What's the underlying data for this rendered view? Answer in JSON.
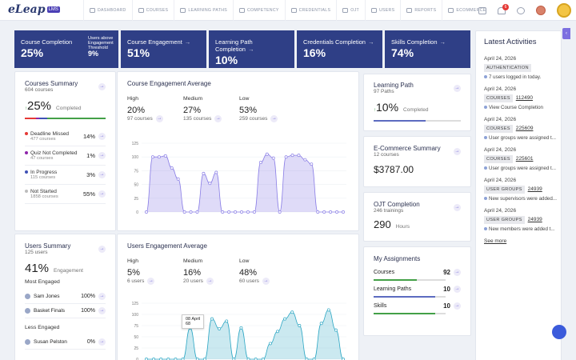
{
  "brand": {
    "logo": "eLeap",
    "badge": "LMS"
  },
  "nav": [
    {
      "label": "DASHBOARD",
      "icon": "dashboard-icon"
    },
    {
      "label": "COURSES",
      "icon": "courses-icon"
    },
    {
      "label": "LEARNING PATHS",
      "icon": "learning-paths-icon"
    },
    {
      "label": "COMPETENCY",
      "icon": "competency-icon"
    },
    {
      "label": "CREDENTIALS",
      "icon": "credentials-icon"
    },
    {
      "label": "OJT",
      "icon": "ojt-icon"
    },
    {
      "label": "USERS",
      "icon": "users-icon"
    },
    {
      "label": "REPORTS",
      "icon": "reports-icon"
    },
    {
      "label": "ECOMMERCE",
      "icon": "ecommerce-icon"
    }
  ],
  "topbar": {
    "notification_count": "6"
  },
  "kpis": [
    {
      "title": "Course Completion",
      "value": "25%",
      "sub": "Users above Engagement Threshold",
      "subval": "9%"
    },
    {
      "title": "Course Engagement",
      "value": "51%"
    },
    {
      "title": "Learning Path Completion",
      "value": "10%"
    },
    {
      "title": "Credentials Completion",
      "value": "16%"
    },
    {
      "title": "Skills Completion",
      "value": "74%"
    }
  ],
  "courses_summary": {
    "title": "Courses Summary",
    "sub": "604 courses",
    "value": "25%",
    "value_label": "Completed",
    "arrow": "↑",
    "items": [
      {
        "label": "Deadline Missed",
        "sub": "477 courses",
        "pct": "14%",
        "color": "#e53935"
      },
      {
        "label": "Quiz Not Completed",
        "sub": "47 courses",
        "pct": "1%",
        "color": "#8e24aa"
      },
      {
        "label": "In Progress",
        "sub": "115 courses",
        "pct": "3%",
        "color": "#3f51b5"
      },
      {
        "label": "Not Started",
        "sub": "1858 courses",
        "pct": "55%",
        "color": "#bdbdbd"
      }
    ]
  },
  "course_engagement": {
    "title": "Course Engagement Average",
    "stats": [
      {
        "label": "High",
        "value": "20%",
        "sub": "97 courses"
      },
      {
        "label": "Medium",
        "value": "27%",
        "sub": "135 courses"
      },
      {
        "label": "Low",
        "value": "53%",
        "sub": "259 courses"
      }
    ]
  },
  "users_summary": {
    "title": "Users Summary",
    "sub": "125 users",
    "value": "41%",
    "value_label": "Engagement",
    "most_label": "Most Engaged",
    "most": [
      {
        "name": "Sam Jones",
        "pct": "100%"
      },
      {
        "name": "Basket Finals",
        "pct": "100%"
      }
    ],
    "less_label": "Less Engaged",
    "less": [
      {
        "name": "Susan Pelston",
        "pct": "0%"
      }
    ]
  },
  "users_engagement": {
    "title": "Users Engagement Average",
    "stats": [
      {
        "label": "High",
        "value": "5%",
        "sub": "6 users"
      },
      {
        "label": "Medium",
        "value": "16%",
        "sub": "20 users"
      },
      {
        "label": "Low",
        "value": "48%",
        "sub": "60 users"
      }
    ],
    "tooltip": {
      "date": "08 April",
      "value": "68"
    }
  },
  "learning_path": {
    "title": "Learning Path",
    "sub": "97 Paths",
    "value": "10%",
    "value_label": "Completed",
    "arrow": "↑"
  },
  "ecommerce": {
    "title": "E-Commerce Summary",
    "sub": "12 courses",
    "value": "$3787.00"
  },
  "ojt": {
    "title": "OJT Completion",
    "sub": "246 trainings",
    "value": "290",
    "unit": "Hours"
  },
  "assignments": {
    "title": "My Assignments",
    "items": [
      {
        "label": "Courses",
        "count": "92",
        "fill": 0.6,
        "color": "#43a047"
      },
      {
        "label": "Learning Paths",
        "count": "10",
        "fill": 0.85,
        "color": "#5c6bc0"
      },
      {
        "label": "Skills",
        "count": "10",
        "fill": 0.85,
        "color": "#43a047"
      }
    ]
  },
  "activities": {
    "title": "Latest Activities",
    "items": [
      {
        "date": "April 24, 2026",
        "tag": "AUTHENTICATION",
        "link": "",
        "desc": "7 users logged in today."
      },
      {
        "date": "April 24, 2026",
        "tag": "COURSES",
        "link": "112490",
        "desc": "View Course Completion"
      },
      {
        "date": "April 24, 2026",
        "tag": "COURSES",
        "link": "225609",
        "desc": "User groups were assigned t..."
      },
      {
        "date": "April 24, 2026",
        "tag": "COURSES",
        "link": "225601",
        "desc": "User groups were assigned t..."
      },
      {
        "date": "April 24, 2026",
        "tag": "USER GROUPS",
        "link": "24939",
        "desc": "New supervisors were added..."
      },
      {
        "date": "April 24, 2026",
        "tag": "USER GROUPS",
        "link": "24939",
        "desc": "New members were added t..."
      }
    ],
    "see_more": "See more"
  },
  "chart_data": [
    {
      "type": "area",
      "title": "Course Engagement Average",
      "ylim": [
        0,
        125
      ],
      "yticks": [
        0,
        25,
        50,
        75,
        100,
        125
      ],
      "values": [
        0,
        100,
        100,
        102,
        80,
        60,
        0,
        0,
        0,
        70,
        52,
        72,
        0,
        0,
        0,
        0,
        0,
        0,
        90,
        105,
        98,
        0,
        100,
        103,
        103,
        95,
        87,
        0,
        0,
        0,
        0,
        0
      ]
    },
    {
      "type": "area",
      "title": "Users Engagement Average",
      "ylim": [
        0,
        125
      ],
      "yticks": [
        0,
        25,
        50,
        75,
        100,
        125
      ],
      "values": [
        0,
        0,
        0,
        0,
        0,
        0,
        70,
        0,
        0,
        90,
        68,
        85,
        0,
        70,
        0,
        0,
        0,
        35,
        62,
        90,
        105,
        75,
        0,
        0,
        80,
        110,
        65,
        0
      ]
    }
  ]
}
